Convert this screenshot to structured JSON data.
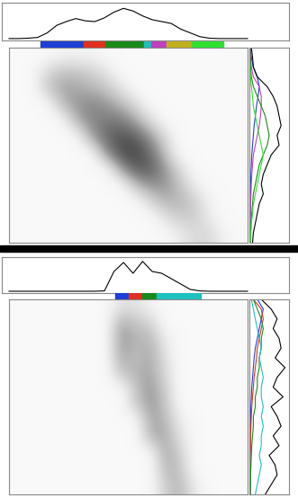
{
  "chart_data": [
    {
      "type": "heatmap",
      "tick_labels": false,
      "xlim": [
        0,
        100
      ],
      "ylim": [
        100,
        0
      ],
      "cell_range": [
        0,
        1
      ],
      "cells": [
        [
          0.05,
          0.05,
          0.05,
          0.1,
          0.1,
          0.1,
          0.05,
          0.05,
          0.05,
          0.05,
          0.05,
          0.05,
          0.05,
          0.05,
          0.05,
          0.05
        ],
        [
          0.05,
          0.05,
          0.25,
          0.35,
          0.35,
          0.3,
          0.2,
          0.05,
          0.05,
          0.05,
          0.05,
          0.05,
          0.05,
          0.05,
          0.05,
          0.05
        ],
        [
          0.05,
          0.05,
          0.3,
          0.45,
          0.45,
          0.4,
          0.35,
          0.2,
          0.05,
          0.05,
          0.05,
          0.05,
          0.05,
          0.05,
          0.05,
          0.05
        ],
        [
          0.05,
          0.05,
          0.05,
          0.35,
          0.5,
          0.55,
          0.5,
          0.4,
          0.25,
          0.05,
          0.05,
          0.05,
          0.05,
          0.05,
          0.05,
          0.05
        ],
        [
          0.05,
          0.05,
          0.05,
          0.05,
          0.4,
          0.55,
          0.6,
          0.6,
          0.45,
          0.25,
          0.05,
          0.05,
          0.05,
          0.05,
          0.05,
          0.05
        ],
        [
          0.05,
          0.05,
          0.05,
          0.05,
          0.05,
          0.45,
          0.65,
          0.75,
          0.7,
          0.5,
          0.25,
          0.05,
          0.05,
          0.05,
          0.05,
          0.05
        ],
        [
          0.05,
          0.05,
          0.05,
          0.05,
          0.05,
          0.05,
          0.5,
          0.75,
          0.8,
          0.65,
          0.35,
          0.05,
          0.05,
          0.05,
          0.05,
          0.05
        ],
        [
          0.05,
          0.05,
          0.05,
          0.05,
          0.05,
          0.05,
          0.05,
          0.45,
          0.7,
          0.7,
          0.5,
          0.25,
          0.05,
          0.05,
          0.05,
          0.05
        ],
        [
          0.05,
          0.05,
          0.05,
          0.05,
          0.05,
          0.05,
          0.05,
          0.05,
          0.35,
          0.5,
          0.5,
          0.35,
          0.15,
          0.05,
          0.05,
          0.05
        ],
        [
          0.05,
          0.05,
          0.05,
          0.05,
          0.05,
          0.05,
          0.05,
          0.05,
          0.05,
          0.25,
          0.4,
          0.4,
          0.3,
          0.1,
          0.05,
          0.05
        ],
        [
          0.05,
          0.05,
          0.05,
          0.05,
          0.05,
          0.05,
          0.05,
          0.05,
          0.05,
          0.05,
          0.2,
          0.3,
          0.3,
          0.15,
          0.05,
          0.05
        ],
        [
          0.05,
          0.05,
          0.05,
          0.05,
          0.05,
          0.05,
          0.05,
          0.05,
          0.05,
          0.05,
          0.05,
          0.15,
          0.25,
          0.25,
          0.1,
          0.05
        ]
      ],
      "top_profile": {
        "color": "#000000",
        "ylim": [
          0,
          1
        ],
        "x": [
          0,
          4,
          8,
          12,
          16,
          20,
          24,
          28,
          32,
          36,
          40,
          44,
          48,
          52,
          56,
          60,
          64,
          68,
          72,
          76,
          80,
          84,
          88,
          92,
          96,
          100
        ],
        "values": [
          0.05,
          0.05,
          0.06,
          0.08,
          0.2,
          0.4,
          0.5,
          0.58,
          0.52,
          0.5,
          0.6,
          0.75,
          0.85,
          0.78,
          0.65,
          0.55,
          0.5,
          0.45,
          0.3,
          0.2,
          0.1,
          0.06,
          0.05,
          0.05,
          0.05,
          0.05
        ]
      },
      "segments": [
        {
          "start": 13.2,
          "end": 31.3,
          "color": "#1f3fd6"
        },
        {
          "start": 31.3,
          "end": 40.4,
          "color": "#e03020"
        },
        {
          "start": 40.4,
          "end": 56.6,
          "color": "#1a8a1a"
        },
        {
          "start": 56.6,
          "end": 59.6,
          "color": "#20c0c0"
        },
        {
          "start": 59.6,
          "end": 66.0,
          "color": "#c040c0"
        },
        {
          "start": 66.0,
          "end": 76.6,
          "color": "#c0b020"
        },
        {
          "start": 76.6,
          "end": 89.8,
          "color": "#30e030"
        }
      ],
      "side_profiles": {
        "xlim": [
          0,
          1
        ],
        "y": [
          0,
          5,
          10,
          15,
          20,
          25,
          30,
          35,
          40,
          45,
          50,
          55,
          60,
          65,
          70,
          75,
          80,
          85,
          90,
          95,
          100
        ],
        "series": [
          {
            "color": "#1f3fd6",
            "values": [
              0.02,
              0.05,
              0.1,
              0.2,
              0.25,
              0.22,
              0.18,
              0.15,
              0.12,
              0.1,
              0.08,
              0.06,
              0.05,
              0.04,
              0.03,
              0.03,
              0.02,
              0.02,
              0.02,
              0.02,
              0.02
            ]
          },
          {
            "color": "#c040c0",
            "values": [
              0.02,
              0.03,
              0.05,
              0.1,
              0.25,
              0.3,
              0.3,
              0.28,
              0.25,
              0.2,
              0.15,
              0.1,
              0.08,
              0.06,
              0.05,
              0.04,
              0.03,
              0.03,
              0.02,
              0.02,
              0.02
            ]
          },
          {
            "color": "#1a8a1a",
            "values": [
              0.02,
              0.02,
              0.03,
              0.05,
              0.1,
              0.2,
              0.3,
              0.4,
              0.45,
              0.5,
              0.45,
              0.35,
              0.25,
              0.2,
              0.15,
              0.1,
              0.08,
              0.06,
              0.04,
              0.03,
              0.02
            ]
          },
          {
            "color": "#30e030",
            "values": [
              0.01,
              0.01,
              0.02,
              0.03,
              0.05,
              0.08,
              0.1,
              0.15,
              0.2,
              0.25,
              0.3,
              0.35,
              0.3,
              0.25,
              0.2,
              0.15,
              0.1,
              0.08,
              0.05,
              0.04,
              0.03
            ]
          },
          {
            "color": "#000000",
            "values": [
              0.05,
              0.08,
              0.1,
              0.2,
              0.45,
              0.6,
              0.7,
              0.75,
              0.8,
              0.7,
              0.75,
              0.55,
              0.45,
              0.35,
              0.3,
              0.35,
              0.25,
              0.2,
              0.15,
              0.1,
              0.08
            ]
          }
        ]
      }
    },
    {
      "type": "heatmap",
      "tick_labels": false,
      "xlim": [
        0,
        100
      ],
      "ylim": [
        100,
        0
      ],
      "cell_range": [
        0,
        1
      ],
      "cells": [
        [
          0.05,
          0.05,
          0.05,
          0.05,
          0.05,
          0.05,
          0.05,
          0.2,
          0.2,
          0.1,
          0.05,
          0.05,
          0.05,
          0.05,
          0.05,
          0.05
        ],
        [
          0.05,
          0.05,
          0.05,
          0.05,
          0.05,
          0.05,
          0.05,
          0.45,
          0.35,
          0.3,
          0.05,
          0.05,
          0.05,
          0.05,
          0.05,
          0.05
        ],
        [
          0.05,
          0.05,
          0.05,
          0.05,
          0.05,
          0.05,
          0.05,
          0.5,
          0.4,
          0.4,
          0.15,
          0.05,
          0.05,
          0.05,
          0.05,
          0.05
        ],
        [
          0.05,
          0.05,
          0.05,
          0.05,
          0.05,
          0.05,
          0.05,
          0.45,
          0.35,
          0.45,
          0.2,
          0.05,
          0.05,
          0.05,
          0.05,
          0.05
        ],
        [
          0.05,
          0.05,
          0.05,
          0.05,
          0.05,
          0.05,
          0.05,
          0.35,
          0.4,
          0.45,
          0.25,
          0.05,
          0.05,
          0.05,
          0.05,
          0.05
        ],
        [
          0.05,
          0.05,
          0.05,
          0.05,
          0.05,
          0.05,
          0.05,
          0.05,
          0.35,
          0.5,
          0.3,
          0.05,
          0.05,
          0.05,
          0.05,
          0.05
        ],
        [
          0.05,
          0.05,
          0.05,
          0.05,
          0.05,
          0.05,
          0.05,
          0.05,
          0.3,
          0.5,
          0.35,
          0.05,
          0.05,
          0.05,
          0.05,
          0.05
        ],
        [
          0.05,
          0.05,
          0.05,
          0.05,
          0.05,
          0.05,
          0.05,
          0.05,
          0.05,
          0.45,
          0.4,
          0.15,
          0.05,
          0.05,
          0.05,
          0.05
        ],
        [
          0.05,
          0.05,
          0.05,
          0.05,
          0.05,
          0.05,
          0.05,
          0.05,
          0.05,
          0.4,
          0.45,
          0.2,
          0.05,
          0.05,
          0.05,
          0.05
        ],
        [
          0.05,
          0.05,
          0.05,
          0.05,
          0.05,
          0.05,
          0.05,
          0.05,
          0.05,
          0.05,
          0.45,
          0.3,
          0.05,
          0.05,
          0.05,
          0.05
        ],
        [
          0.05,
          0.05,
          0.05,
          0.05,
          0.05,
          0.05,
          0.05,
          0.05,
          0.05,
          0.05,
          0.4,
          0.35,
          0.05,
          0.05,
          0.05,
          0.05
        ],
        [
          0.05,
          0.05,
          0.05,
          0.05,
          0.05,
          0.05,
          0.05,
          0.05,
          0.05,
          0.05,
          0.3,
          0.4,
          0.15,
          0.05,
          0.05,
          0.05
        ]
      ],
      "top_profile": {
        "color": "#000000",
        "ylim": [
          0,
          1
        ],
        "x": [
          0,
          4,
          8,
          12,
          16,
          20,
          24,
          28,
          32,
          36,
          40,
          44,
          48,
          52,
          56,
          60,
          64,
          68,
          72,
          76,
          80,
          84,
          88,
          92,
          96,
          100
        ],
        "values": [
          0.05,
          0.05,
          0.05,
          0.05,
          0.05,
          0.05,
          0.05,
          0.05,
          0.05,
          0.05,
          0.06,
          0.6,
          0.85,
          0.55,
          0.88,
          0.6,
          0.55,
          0.4,
          0.25,
          0.1,
          0.06,
          0.05,
          0.05,
          0.05,
          0.05,
          0.05
        ]
      },
      "segments": [
        {
          "start": 44.5,
          "end": 50.2,
          "color": "#1f3fd6"
        },
        {
          "start": 50.2,
          "end": 55.8,
          "color": "#e03020"
        },
        {
          "start": 55.8,
          "end": 61.9,
          "color": "#1a8a1a"
        },
        {
          "start": 61.9,
          "end": 80.4,
          "color": "#20c0c0"
        }
      ],
      "side_profiles": {
        "xlim": [
          0,
          1
        ],
        "y": [
          0,
          5,
          10,
          15,
          20,
          25,
          30,
          35,
          40,
          45,
          50,
          55,
          60,
          65,
          70,
          75,
          80,
          85,
          90,
          95,
          100
        ],
        "series": [
          {
            "color": "#1f3fd6",
            "values": [
              0.2,
              0.35,
              0.3,
              0.25,
              0.2,
              0.15,
              0.12,
              0.1,
              0.08,
              0.06,
              0.05,
              0.04,
              0.03,
              0.03,
              0.02,
              0.02,
              0.02,
              0.02,
              0.02,
              0.02,
              0.02
            ]
          },
          {
            "color": "#e03020",
            "values": [
              0.1,
              0.3,
              0.35,
              0.3,
              0.25,
              0.2,
              0.18,
              0.15,
              0.12,
              0.1,
              0.08,
              0.06,
              0.05,
              0.04,
              0.03,
              0.03,
              0.02,
              0.02,
              0.02,
              0.02,
              0.02
            ]
          },
          {
            "color": "#1a8a1a",
            "values": [
              0.1,
              0.2,
              0.3,
              0.35,
              0.3,
              0.3,
              0.25,
              0.25,
              0.2,
              0.2,
              0.15,
              0.15,
              0.1,
              0.1,
              0.08,
              0.06,
              0.05,
              0.04,
              0.03,
              0.03,
              0.02
            ]
          },
          {
            "color": "#20c0c0",
            "values": [
              0.05,
              0.1,
              0.15,
              0.2,
              0.25,
              0.3,
              0.25,
              0.3,
              0.35,
              0.3,
              0.3,
              0.35,
              0.3,
              0.35,
              0.3,
              0.3,
              0.25,
              0.3,
              0.25,
              0.2,
              0.15
            ]
          },
          {
            "color": "#000000",
            "values": [
              0.3,
              0.55,
              0.7,
              0.6,
              0.75,
              0.8,
              0.65,
              0.9,
              0.7,
              0.6,
              0.85,
              0.55,
              0.7,
              0.8,
              0.6,
              0.75,
              0.5,
              0.65,
              0.7,
              0.55,
              0.4
            ]
          }
        ]
      }
    }
  ]
}
